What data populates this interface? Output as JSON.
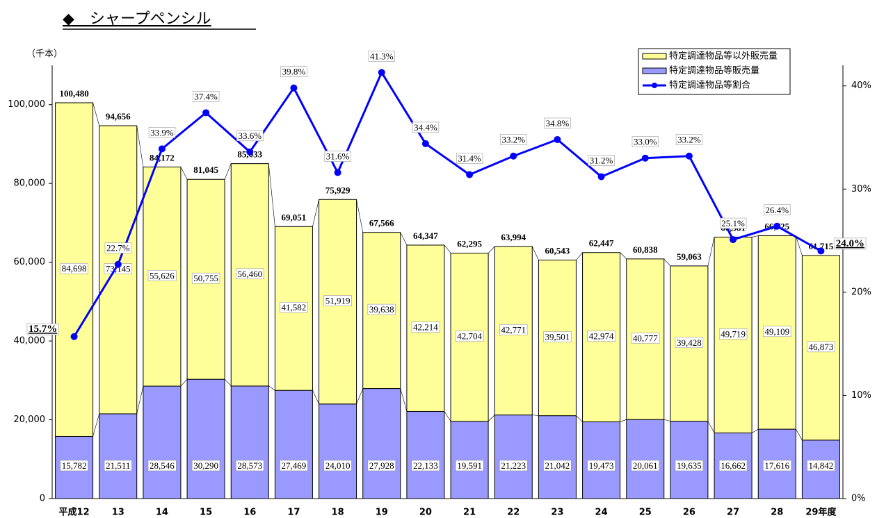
{
  "chart_data": {
    "type": "stacked_bar_line",
    "title": "◆　シャープペンシル",
    "y_label": "（千本）",
    "categories": [
      "平成12",
      "13",
      "14",
      "15",
      "16",
      "17",
      "18",
      "19",
      "20",
      "21",
      "22",
      "23",
      "24",
      "25",
      "26",
      "27",
      "28",
      "29年度"
    ],
    "series": [
      {
        "name": "特定調達物品等以外販売量",
        "color": "#ffff99",
        "values": [
          84698,
          73145,
          55626,
          50755,
          56460,
          41582,
          51919,
          39638,
          42214,
          42704,
          42771,
          39501,
          42974,
          40777,
          39428,
          49719,
          49109,
          46873
        ],
        "value_labels": [
          "84,698",
          "73,145",
          "55,626",
          "50,755",
          "56,460",
          "41,582",
          "51,919",
          "39,638",
          "42,214",
          "42,704",
          "42,771",
          "39,501",
          "42,974",
          "40,777",
          "39,428",
          "49,719",
          "49,109",
          "46,873"
        ]
      },
      {
        "name": "特定調達物品等販売量",
        "color": "#9999ff",
        "values": [
          15782,
          21511,
          28546,
          30290,
          28573,
          27469,
          24010,
          27928,
          22133,
          19591,
          21223,
          21042,
          19473,
          20061,
          19635,
          16662,
          17616,
          14842
        ],
        "value_labels": [
          "15,782",
          "21,511",
          "28,546",
          "30,290",
          "28,573",
          "27,469",
          "24,010",
          "27,928",
          "22,133",
          "19,591",
          "21,223",
          "21,042",
          "19,473",
          "20,061",
          "19,635",
          "16,662",
          "17,616",
          "14,842"
        ]
      },
      {
        "name": "特定調達物品等割合",
        "color": "#0000ff",
        "axis": "y2",
        "values": [
          15.7,
          22.7,
          33.9,
          37.4,
          33.6,
          39.8,
          31.6,
          41.3,
          34.4,
          31.4,
          33.2,
          34.8,
          31.2,
          33.0,
          33.2,
          25.1,
          26.4,
          24.0
        ],
        "value_labels": [
          "15.7%",
          "22.7%",
          "33.9%",
          "37.4%",
          "33.6%",
          "39.8%",
          "31.6%",
          "41.3%",
          "34.4%",
          "31.4%",
          "33.2%",
          "34.8%",
          "31.2%",
          "33.0%",
          "33.2%",
          "25.1%",
          "26.4%",
          "24.0%"
        ]
      }
    ],
    "totals": [
      100480,
      94656,
      84172,
      81045,
      85033,
      69051,
      75929,
      67566,
      64347,
      62295,
      63994,
      60543,
      62447,
      60838,
      59063,
      66381,
      66725,
      61715
    ],
    "total_labels": [
      "100,480",
      "94,656",
      "84,172",
      "81,045",
      "85,033",
      "69,051",
      "75,929",
      "67,566",
      "64,347",
      "62,295",
      "63,994",
      "60,543",
      "62,447",
      "60,838",
      "59,063",
      "66,381",
      "66,725",
      "61,715"
    ],
    "ylim": [
      0,
      110000
    ],
    "yticks": [
      0,
      {
        "value": 20000,
        "label": "20,000"
      },
      {
        "value": 40000,
        "label": "40,000"
      },
      {
        "value": 60000,
        "label": "60,000"
      },
      {
        "value": 80000,
        "label": "80,000"
      },
      {
        "value": 100000,
        "label": "100,000"
      }
    ],
    "y2lim": [
      0,
      42
    ],
    "y2ticks": [
      {
        "value": 0,
        "label": "0%"
      },
      {
        "value": 10,
        "label": "10%"
      },
      {
        "value": 20,
        "label": "20%"
      },
      {
        "value": 30,
        "label": "30%"
      },
      {
        "value": 40,
        "label": "40%"
      }
    ],
    "legend": "top-right"
  }
}
